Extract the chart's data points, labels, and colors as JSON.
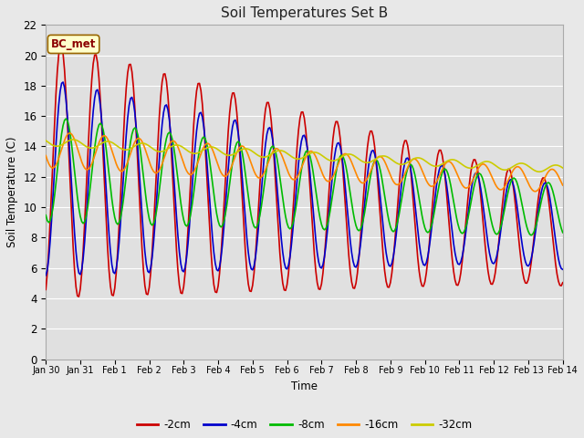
{
  "title": "Soil Temperatures Set B",
  "xlabel": "Time",
  "ylabel": "Soil Temperature (C)",
  "annotation": "BC_met",
  "ylim": [
    0,
    22
  ],
  "yticks": [
    0,
    2,
    4,
    6,
    8,
    10,
    12,
    14,
    16,
    18,
    20,
    22
  ],
  "x_labels": [
    "Jan 30",
    "Jan 31",
    "Feb 1",
    "Feb 2",
    "Feb 3",
    "Feb 4",
    "Feb 5",
    "Feb 6",
    "Feb 7",
    "Feb 8",
    "Feb 9",
    "Feb 10",
    "Feb 11",
    "Feb 12",
    "Feb 13",
    "Feb 14"
  ],
  "series": {
    "-2cm": {
      "color": "#cc0000",
      "linewidth": 1.2
    },
    "-4cm": {
      "color": "#0000cc",
      "linewidth": 1.2
    },
    "-8cm": {
      "color": "#00bb00",
      "linewidth": 1.2
    },
    "-16cm": {
      "color": "#ff8800",
      "linewidth": 1.2
    },
    "-32cm": {
      "color": "#cccc00",
      "linewidth": 1.2
    }
  },
  "legend_order": [
    "-2cm",
    "-4cm",
    "-8cm",
    "-16cm",
    "-32cm"
  ],
  "plot_bgcolor": "#e0e0e0",
  "fig_bgcolor": "#e8e8e8",
  "grid_color": "#ffffff",
  "title_fontsize": 11,
  "figsize": [
    6.4,
    4.8
  ],
  "dpi": 100
}
